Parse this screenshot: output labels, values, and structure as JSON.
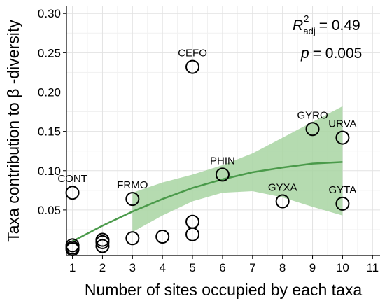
{
  "chart_data": {
    "type": "scatter",
    "xlabel": "Number of sites occupied by each taxa",
    "ylabel": "Taxa contribution to β -diversity",
    "xlim": [
      0.8,
      11.25
    ],
    "ylim": [
      -0.008,
      0.31
    ],
    "xticks": [
      1,
      2,
      3,
      4,
      5,
      6,
      7,
      8,
      9,
      10,
      11
    ],
    "yticks": [
      0.05,
      0.1,
      0.15,
      0.2,
      0.25,
      0.3
    ],
    "ytick_labels": [
      "0.05",
      "0.10",
      "0.15",
      "0.20",
      "0.25",
      "0.30"
    ],
    "grid": true,
    "stats": {
      "r2_symbol": "R",
      "r2_sup": "2",
      "r2_sub": "adj",
      "r2_value": "= 0.49",
      "p_symbol": "p",
      "p_value": "= 0.005"
    },
    "points": [
      {
        "x": 1,
        "y": 0.072,
        "label": "CONT"
      },
      {
        "x": 1,
        "y": 0.005
      },
      {
        "x": 1,
        "y": 0.002
      },
      {
        "x": 1,
        "y": 0.0
      },
      {
        "x": 2,
        "y": 0.012
      },
      {
        "x": 2,
        "y": 0.009
      },
      {
        "x": 2,
        "y": 0.004
      },
      {
        "x": 3,
        "y": 0.064,
        "label": "FRMO"
      },
      {
        "x": 3,
        "y": 0.014
      },
      {
        "x": 4,
        "y": 0.016
      },
      {
        "x": 5,
        "y": 0.232,
        "label": "CEFO"
      },
      {
        "x": 5,
        "y": 0.035
      },
      {
        "x": 5,
        "y": 0.019
      },
      {
        "x": 6,
        "y": 0.095,
        "label": "PHIN"
      },
      {
        "x": 8,
        "y": 0.061,
        "label": "GYXA"
      },
      {
        "x": 9,
        "y": 0.153,
        "label": "GYRO"
      },
      {
        "x": 10,
        "y": 0.142,
        "label": "URVA"
      },
      {
        "x": 10,
        "y": 0.058,
        "label": "GYTA"
      }
    ],
    "fit": {
      "x": [
        1,
        2,
        3,
        4,
        5,
        6,
        7,
        8,
        9,
        10
      ],
      "y": [
        0.01,
        0.03,
        0.048,
        0.064,
        0.078,
        0.089,
        0.098,
        0.104,
        0.109,
        0.111
      ],
      "lower": [
        null,
        null,
        0.022,
        0.043,
        0.061,
        0.072,
        0.074,
        0.066,
        0.054,
        0.043
      ],
      "upper": [
        null,
        null,
        0.072,
        0.085,
        0.095,
        0.107,
        0.122,
        0.142,
        0.162,
        0.182
      ],
      "color": "#4a9a4a",
      "band_color": "#a8d5a2"
    }
  }
}
